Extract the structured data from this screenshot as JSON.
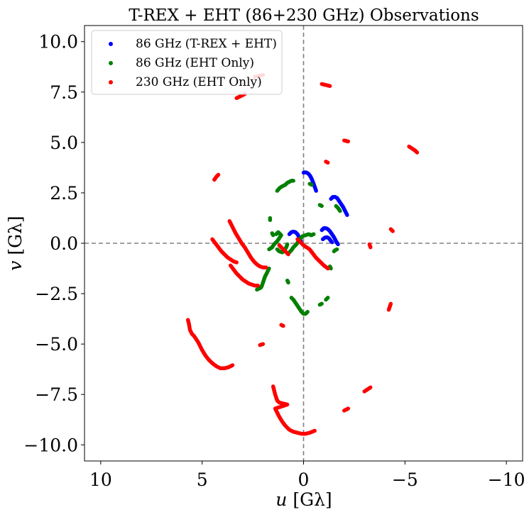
{
  "chart_data": {
    "type": "scatter",
    "title": "T-REX + EHT (86+230 GHz) Observations",
    "xlabel_italic": "u",
    "xlabel_unit": " [Gλ]",
    "ylabel_italic": "v",
    "ylabel_unit": " [Gλ]",
    "xlim": [
      10.8,
      -10.8
    ],
    "ylim": [
      -10.8,
      10.8
    ],
    "x_ticks": [
      10,
      5,
      0,
      -5,
      -10
    ],
    "x_tick_labels": [
      "10",
      "5",
      "0",
      "−5",
      "−10"
    ],
    "y_ticks": [
      10,
      7.5,
      5,
      2.5,
      0,
      -2.5,
      -5,
      -7.5,
      -10
    ],
    "y_tick_labels": [
      "10.0",
      "7.5",
      "5.0",
      "2.5",
      "0.0",
      "−2.5",
      "−5.0",
      "−7.5",
      "−10.0"
    ],
    "reference_lines": {
      "x": 0,
      "y": 0,
      "style": "dashed",
      "color": "#808080"
    },
    "legend_position": "upper-left",
    "series": [
      {
        "name": "86 GHz (T-REX + EHT)",
        "color": "#0000ff",
        "tracks": [
          [
            [
              0.0,
              3.5
            ],
            [
              -0.08,
              3.52
            ],
            [
              -0.16,
              3.5
            ],
            [
              -0.24,
              3.45
            ],
            [
              -0.32,
              3.35
            ],
            [
              -0.4,
              3.2
            ],
            [
              -0.48,
              3.0
            ],
            [
              -0.55,
              2.8
            ],
            [
              -0.62,
              2.6
            ]
          ],
          [
            [
              -1.35,
              2.2
            ],
            [
              -1.45,
              2.3
            ],
            [
              -1.55,
              2.3
            ],
            [
              -1.65,
              2.25
            ],
            [
              -1.75,
              2.1
            ],
            [
              -1.85,
              1.95
            ],
            [
              -1.95,
              1.8
            ],
            [
              -2.05,
              1.6
            ],
            [
              -2.15,
              1.4
            ]
          ],
          [
            [
              0.7,
              0.45
            ],
            [
              0.6,
              0.55
            ],
            [
              0.5,
              0.58
            ],
            [
              0.4,
              0.55
            ],
            [
              0.3,
              0.45
            ],
            [
              0.22,
              0.3
            ],
            [
              0.15,
              0.15
            ],
            [
              0.1,
              0.0
            ]
          ],
          [
            [
              -0.9,
              0.65
            ],
            [
              -1.0,
              0.75
            ],
            [
              -1.1,
              0.75
            ],
            [
              -1.2,
              0.7
            ],
            [
              -1.3,
              0.6
            ],
            [
              -1.4,
              0.45
            ],
            [
              -1.5,
              0.3
            ],
            [
              -1.6,
              0.1
            ],
            [
              -1.7,
              -0.05
            ]
          ],
          [
            [
              -0.95,
              0.2
            ],
            [
              -1.05,
              0.28
            ],
            [
              -1.15,
              0.3
            ],
            [
              -1.25,
              0.25
            ],
            [
              -1.32,
              0.15
            ],
            [
              -1.4,
              0.05
            ]
          ]
        ]
      },
      {
        "name": "86 GHz (EHT Only)",
        "color": "#008000",
        "tracks": [
          [
            [
              1.3,
              2.6
            ],
            [
              1.2,
              2.72
            ],
            [
              1.1,
              2.8
            ],
            [
              1.0,
              2.85
            ],
            [
              0.9,
              2.9
            ],
            [
              0.8,
              3.0
            ],
            [
              0.7,
              3.05
            ],
            [
              0.6,
              3.1
            ],
            [
              0.5,
              3.1
            ]
          ],
          [
            [
              1.65,
              1.25
            ],
            [
              1.65,
              1.15
            ]
          ],
          [
            [
              -0.3,
              2.95
            ],
            [
              -0.4,
              2.9
            ]
          ],
          [
            [
              -0.8,
              1.9
            ],
            [
              -0.9,
              1.85
            ]
          ],
          [
            [
              -1.6,
              1.85
            ],
            [
              -1.7,
              1.75
            ],
            [
              -1.8,
              1.6
            ]
          ],
          [
            [
              -0.35,
              0.4
            ],
            [
              -0.5,
              0.45
            ]
          ],
          [
            [
              1.7,
              -0.3
            ],
            [
              1.55,
              -0.2
            ],
            [
              1.45,
              -0.05
            ],
            [
              1.3,
              0.1
            ],
            [
              1.2,
              0.25
            ],
            [
              1.1,
              0.4
            ],
            [
              1.25,
              0.55
            ],
            [
              1.35,
              0.45
            ]
          ],
          [
            [
              1.3,
              -0.3
            ],
            [
              1.2,
              -0.4
            ],
            [
              1.05,
              -0.45
            ],
            [
              0.95,
              -0.35
            ],
            [
              0.85,
              -0.2
            ],
            [
              0.8,
              -0.05
            ]
          ],
          [
            [
              1.55,
              0.5
            ],
            [
              1.5,
              0.4
            ]
          ],
          [
            [
              0.7,
              -0.45
            ],
            [
              0.6,
              -0.35
            ],
            [
              0.5,
              -0.2
            ],
            [
              0.35,
              -0.05
            ],
            [
              0.25,
              0.1
            ],
            [
              0.15,
              0.25
            ],
            [
              0.05,
              0.35
            ],
            [
              -0.1,
              0.4
            ],
            [
              -0.25,
              0.45
            ],
            [
              -0.4,
              0.4
            ]
          ],
          [
            [
              -1.3,
              -1.15
            ],
            [
              -1.35,
              -1.25
            ]
          ],
          [
            [
              1.7,
              -1.25
            ],
            [
              1.75,
              -1.35
            ],
            [
              1.82,
              -1.5
            ],
            [
              1.9,
              -1.65
            ],
            [
              1.95,
              -1.8
            ],
            [
              2.0,
              -1.95
            ],
            [
              2.05,
              -2.1
            ],
            [
              2.1,
              -2.2
            ],
            [
              2.2,
              -2.25
            ],
            [
              2.3,
              -2.3
            ]
          ],
          [
            [
              0.8,
              -1.85
            ],
            [
              0.75,
              -1.95
            ]
          ],
          [
            [
              0.6,
              -2.7
            ],
            [
              0.5,
              -2.8
            ],
            [
              0.4,
              -2.95
            ],
            [
              0.3,
              -3.1
            ],
            [
              0.2,
              -3.25
            ],
            [
              0.1,
              -3.4
            ],
            [
              0.0,
              -3.5
            ],
            [
              -0.1,
              -3.5
            ],
            [
              -0.2,
              -3.4
            ]
          ],
          [
            [
              -0.8,
              -3.05
            ],
            [
              -0.9,
              -3.0
            ]
          ],
          [
            [
              -1.1,
              -2.8
            ],
            [
              -1.2,
              -2.7
            ]
          ],
          [
            [
              -1.65,
              -0.3
            ],
            [
              -1.55,
              -0.35
            ],
            [
              -1.5,
              -0.4
            ]
          ]
        ]
      },
      {
        "name": "230 GHz (EHT Only)",
        "color": "#ff0000",
        "tracks": [
          [
            [
              3.3,
              7.2
            ],
            [
              3.1,
              7.3
            ],
            [
              2.9,
              7.4
            ]
          ],
          [
            [
              2.4,
              8.25
            ],
            [
              2.2,
              8.3
            ],
            [
              2.0,
              8.35
            ]
          ],
          [
            [
              -0.9,
              7.9
            ],
            [
              -1.1,
              7.85
            ],
            [
              -1.3,
              7.8
            ]
          ],
          [
            [
              -2.0,
              5.1
            ],
            [
              -2.2,
              5.05
            ]
          ],
          [
            [
              -1.1,
              4.05
            ],
            [
              -1.2,
              4.0
            ]
          ],
          [
            [
              -5.2,
              4.8
            ],
            [
              -5.35,
              4.7
            ],
            [
              -5.5,
              4.6
            ],
            [
              -5.6,
              4.5
            ]
          ],
          [
            [
              4.4,
              3.15
            ],
            [
              4.3,
              3.3
            ],
            [
              4.2,
              3.4
            ]
          ],
          [
            [
              -4.3,
              0.7
            ],
            [
              -4.4,
              0.6
            ]
          ],
          [
            [
              4.5,
              0.2
            ],
            [
              4.35,
              0.0
            ],
            [
              4.2,
              -0.2
            ],
            [
              4.05,
              -0.4
            ],
            [
              3.9,
              -0.55
            ],
            [
              3.75,
              -0.7
            ],
            [
              3.6,
              -0.8
            ],
            [
              3.45,
              -0.9
            ],
            [
              3.3,
              -0.95
            ]
          ],
          [
            [
              3.65,
              1.1
            ],
            [
              3.55,
              0.9
            ],
            [
              3.45,
              0.7
            ],
            [
              3.35,
              0.5
            ],
            [
              3.2,
              0.25
            ],
            [
              3.05,
              0.0
            ],
            [
              2.9,
              -0.2
            ],
            [
              2.75,
              -0.45
            ],
            [
              2.6,
              -0.7
            ],
            [
              2.45,
              -0.9
            ],
            [
              2.3,
              -1.05
            ],
            [
              2.15,
              -1.15
            ],
            [
              2.0,
              -1.2
            ],
            [
              1.85,
              -1.2
            ]
          ],
          [
            [
              3.6,
              -1.1
            ],
            [
              3.45,
              -1.3
            ],
            [
              3.3,
              -1.5
            ],
            [
              3.15,
              -1.65
            ],
            [
              3.0,
              -1.8
            ],
            [
              2.85,
              -1.9
            ],
            [
              2.7,
              -2.0
            ],
            [
              2.55,
              -2.05
            ],
            [
              2.4,
              -2.1
            ],
            [
              2.25,
              -2.1
            ]
          ],
          [
            [
              1.2,
              -0.1
            ],
            [
              1.05,
              -0.25
            ],
            [
              0.9,
              -0.4
            ],
            [
              0.75,
              -0.55
            ]
          ],
          [
            [
              0.3,
              0.2
            ],
            [
              0.15,
              0.05
            ],
            [
              0.0,
              -0.1
            ],
            [
              -0.15,
              -0.2
            ],
            [
              -0.3,
              -0.3
            ],
            [
              -0.45,
              -0.5
            ],
            [
              -0.6,
              -0.7
            ],
            [
              -0.8,
              -0.9
            ],
            [
              -1.0,
              -1.1
            ],
            [
              -1.2,
              -1.25
            ]
          ],
          [
            [
              -3.3,
              -0.2
            ],
            [
              -3.25,
              -0.05
            ]
          ],
          [
            [
              -4.3,
              -3.0
            ],
            [
              -4.25,
              -3.15
            ],
            [
              -4.2,
              -3.3
            ]
          ],
          [
            [
              2.0,
              -5.0
            ],
            [
              2.15,
              -5.05
            ]
          ],
          [
            [
              1.1,
              -4.05
            ],
            [
              1.0,
              -4.1
            ]
          ],
          [
            [
              5.7,
              -3.8
            ],
            [
              5.65,
              -4.0
            ],
            [
              5.6,
              -4.3
            ],
            [
              5.5,
              -4.5
            ],
            [
              5.4,
              -4.6
            ],
            [
              5.3,
              -4.75
            ],
            [
              5.2,
              -4.9
            ],
            [
              5.0,
              -5.3
            ],
            [
              4.85,
              -5.55
            ],
            [
              4.7,
              -5.75
            ],
            [
              4.5,
              -5.95
            ],
            [
              4.3,
              -6.1
            ],
            [
              4.1,
              -6.2
            ],
            [
              3.9,
              -6.2
            ],
            [
              3.7,
              -6.15
            ],
            [
              3.5,
              -6.05
            ]
          ],
          [
            [
              1.5,
              -7.1
            ],
            [
              1.4,
              -7.5
            ],
            [
              1.3,
              -7.8
            ],
            [
              1.2,
              -7.9
            ],
            [
              1.0,
              -7.95
            ],
            [
              0.8,
              -8.0
            ],
            [
              1.4,
              -8.2
            ],
            [
              1.3,
              -8.4
            ],
            [
              1.2,
              -8.6
            ],
            [
              1.05,
              -8.85
            ],
            [
              0.9,
              -9.05
            ],
            [
              0.7,
              -9.25
            ],
            [
              0.5,
              -9.35
            ],
            [
              0.3,
              -9.4
            ],
            [
              0.1,
              -9.45
            ],
            [
              -0.1,
              -9.45
            ],
            [
              -0.3,
              -9.4
            ],
            [
              -0.55,
              -9.3
            ]
          ],
          [
            [
              -2.0,
              -8.3
            ],
            [
              -2.1,
              -8.25
            ],
            [
              -2.2,
              -8.2
            ]
          ],
          [
            [
              -3.0,
              -7.35
            ],
            [
              -3.15,
              -7.25
            ],
            [
              -3.3,
              -7.15
            ]
          ]
        ]
      }
    ]
  }
}
